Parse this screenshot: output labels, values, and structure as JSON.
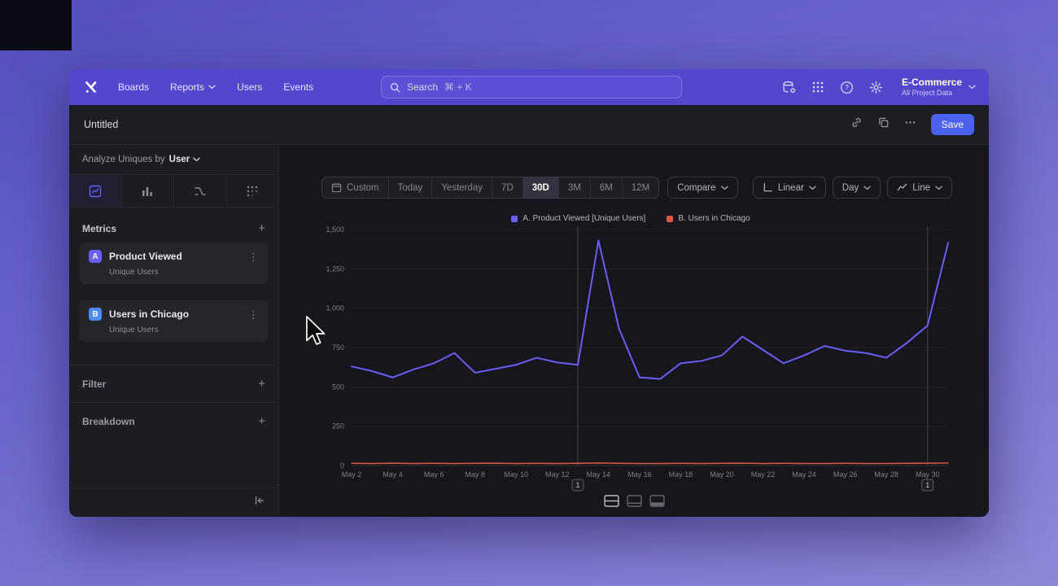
{
  "nav": {
    "items": [
      "Boards",
      "Reports",
      "Users",
      "Events"
    ],
    "search_label": "Search",
    "search_shortcut": "⌘ + K",
    "project_name": "E-Commerce",
    "project_subtitle": "All Project Data"
  },
  "titlebar": {
    "title": "Untitled",
    "save_label": "Save"
  },
  "sidebar": {
    "analyze_prefix": "Analyze Uniques by",
    "analyze_value": "User",
    "metrics_header": "Metrics",
    "metrics": [
      {
        "badge": "A",
        "badge_color": "#6c5ef7",
        "name": "Product Viewed",
        "sub": "Unique Users"
      },
      {
        "badge": "B",
        "badge_color": "#4d8bf8",
        "name": "Users in Chicago",
        "sub": "Unique Users"
      }
    ],
    "filter_header": "Filter",
    "breakdown_header": "Breakdown"
  },
  "toolbar": {
    "ranges": [
      "Custom",
      "Today",
      "Yesterday",
      "7D",
      "30D",
      "3M",
      "6M",
      "12M"
    ],
    "selected_range": "30D",
    "compare": "Compare",
    "linear": "Linear",
    "day": "Day",
    "line": "Line"
  },
  "chart_data": {
    "type": "line",
    "title": "",
    "xlabel": "",
    "ylabel": "",
    "x": [
      "May 2",
      "May 3",
      "May 4",
      "May 5",
      "May 6",
      "May 7",
      "May 8",
      "May 9",
      "May 10",
      "May 11",
      "May 12",
      "May 13",
      "May 14",
      "May 15",
      "May 16",
      "May 17",
      "May 18",
      "May 19",
      "May 20",
      "May 21",
      "May 22",
      "May 23",
      "May 24",
      "May 25",
      "May 26",
      "May 27",
      "May 28",
      "May 29",
      "May 30",
      "May 31"
    ],
    "series": [
      {
        "name": "A. Product Viewed [Unique Users]",
        "color": "#6a5ef5",
        "values": [
          630,
          600,
          560,
          610,
          650,
          715,
          590,
          615,
          640,
          685,
          655,
          640,
          1430,
          870,
          560,
          550,
          650,
          665,
          700,
          820,
          735,
          650,
          700,
          760,
          730,
          715,
          685,
          780,
          890,
          1415
        ]
      },
      {
        "name": "B. Users in Chicago",
        "color": "#e05a43",
        "values": [
          14,
          13,
          15,
          13,
          14,
          13,
          14,
          15,
          13,
          14,
          13,
          14,
          16,
          14,
          13,
          13,
          14,
          13,
          14,
          15,
          13,
          14,
          13,
          13,
          14,
          13,
          13,
          14,
          15,
          16
        ]
      }
    ],
    "ylim": [
      0,
      1500
    ],
    "yticks": [
      0,
      250,
      500,
      750,
      1000,
      1250,
      1500
    ],
    "ytick_labels": [
      "0",
      "250",
      "500",
      "750",
      "1,000",
      "1,250",
      "1,500"
    ],
    "xtick_every": 2,
    "annotations": [
      {
        "x": "May 13",
        "label": "1"
      },
      {
        "x": "May 30",
        "label": "1"
      }
    ],
    "legend_position": "top",
    "grid": true
  }
}
